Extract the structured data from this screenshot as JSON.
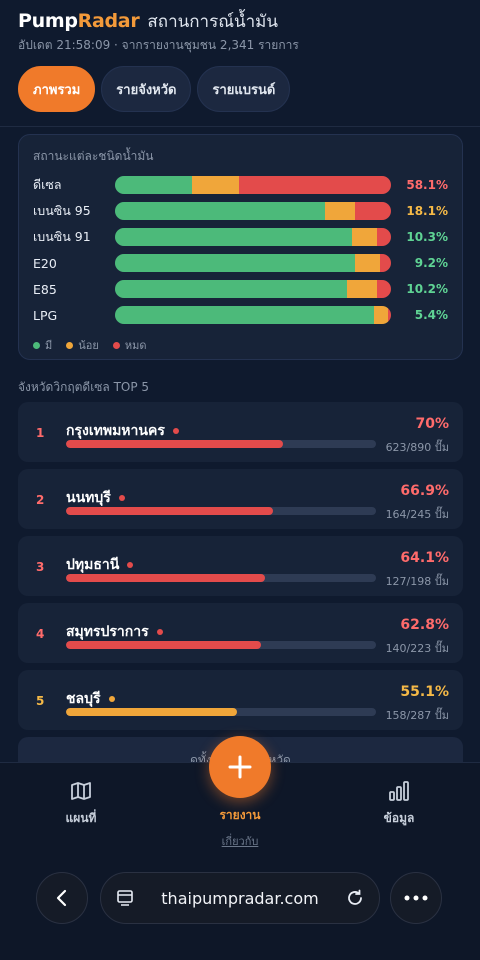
{
  "header": {
    "brand_part1": "Pump",
    "brand_part2": "Radar",
    "subtitle": "สถานการณ์น้ำมัน",
    "updated": "อัปเดต 21:58:09 · จากรายงานชุมชน 2,341 รายการ"
  },
  "tabs": [
    {
      "label": "ภาพรวม",
      "active": true
    },
    {
      "label": "รายจังหวัด",
      "active": false
    },
    {
      "label": "รายแบรนด์",
      "active": false
    }
  ],
  "fuel_status": {
    "title": "สถานะแต่ละชนิดน้ำมัน",
    "rows": [
      {
        "name": "ดีเซล",
        "have": 0.28,
        "low": 0.17,
        "out": 0.55,
        "pct": "58.1%",
        "pct_color": "#ff6b6b"
      },
      {
        "name": "เบนซิน 95",
        "have": 0.76,
        "low": 0.11,
        "out": 0.13,
        "pct": "18.1%",
        "pct_color": "#f5b947"
      },
      {
        "name": "เบนซิน 91",
        "have": 0.86,
        "low": 0.09,
        "out": 0.05,
        "pct": "10.3%",
        "pct_color": "#5fd394"
      },
      {
        "name": "E20",
        "have": 0.87,
        "low": 0.09,
        "out": 0.04,
        "pct": "9.2%",
        "pct_color": "#5fd394"
      },
      {
        "name": "E85",
        "have": 0.84,
        "low": 0.11,
        "out": 0.05,
        "pct": "10.2%",
        "pct_color": "#5fd394"
      },
      {
        "name": "LPG",
        "have": 0.94,
        "low": 0.05,
        "out": 0.01,
        "pct": "5.4%",
        "pct_color": "#5fd394"
      }
    ],
    "legend": [
      {
        "label": "มี",
        "color": "#4cba7a"
      },
      {
        "label": "น้อย",
        "color": "#f0a63a"
      },
      {
        "label": "หมด",
        "color": "#e34b4b"
      }
    ]
  },
  "provinces": {
    "title": "จังหวัดวิกฤตดีเซล TOP 5",
    "items": [
      {
        "rank": "1",
        "name": "กรุงเทพมหานคร",
        "pct": "70%",
        "fill": 0.7,
        "count": "623/890 ปั๊ม",
        "color": "#e34b4b",
        "pct_color": "#ff6b6b"
      },
      {
        "rank": "2",
        "name": "นนทบุรี",
        "pct": "66.9%",
        "fill": 0.669,
        "count": "164/245 ปั๊ม",
        "color": "#e34b4b",
        "pct_color": "#ff6b6b"
      },
      {
        "rank": "3",
        "name": "ปทุมธานี",
        "pct": "64.1%",
        "fill": 0.641,
        "count": "127/198 ปั๊ม",
        "color": "#e34b4b",
        "pct_color": "#ff6b6b"
      },
      {
        "rank": "4",
        "name": "สมุทรปราการ",
        "pct": "62.8%",
        "fill": 0.628,
        "count": "140/223 ปั๊ม",
        "color": "#e34b4b",
        "pct_color": "#ff6b6b"
      },
      {
        "rank": "5",
        "name": "ชลบุรี",
        "pct": "55.1%",
        "fill": 0.551,
        "count": "158/287 ปั๊ม",
        "color": "#f0a63a",
        "pct_color": "#f5b947"
      }
    ]
  },
  "more_card": {
    "label": "ดูทั้งหมดรายจังหวัด"
  },
  "bottom_nav": {
    "map": "แผนที่",
    "report": "รายงาน",
    "report_sub": "เกี่ยวกับ",
    "data": "ข้อมูล"
  },
  "browser": {
    "url": "thaipumpradar.com"
  }
}
